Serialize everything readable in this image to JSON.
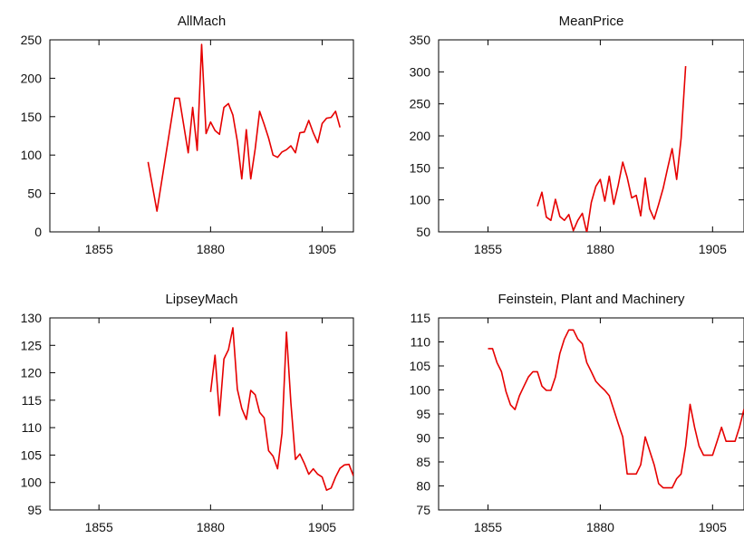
{
  "chart_data": [
    {
      "type": "line",
      "title": "AllMach",
      "xlim": [
        1844,
        1912
      ],
      "ylim": [
        0,
        250
      ],
      "x_ticks": [
        "1855",
        "1880",
        "1905"
      ],
      "y_ticks": [
        "0",
        "50",
        "100",
        "150",
        "200",
        "250"
      ],
      "series": [
        {
          "color": "#e60000",
          "x": [
            1866,
            1868,
            1872,
            1873,
            1875,
            1876,
            1877,
            1878,
            1879,
            1880,
            1881,
            1882,
            1883,
            1884,
            1885,
            1886,
            1887,
            1888,
            1889,
            1890,
            1891,
            1892,
            1893,
            1894,
            1895,
            1896,
            1897,
            1898,
            1899,
            1900,
            1901,
            1902,
            1903,
            1904,
            1905,
            1906,
            1907,
            1908,
            1909
          ],
          "y": [
            91,
            27,
            174,
            174,
            103,
            162,
            106,
            244,
            128,
            143,
            132,
            127,
            162,
            167,
            152,
            118,
            69,
            133,
            69,
            108,
            157,
            140,
            122,
            100,
            97,
            104,
            107,
            112,
            103,
            129,
            130,
            145,
            129,
            116,
            141,
            148,
            149,
            157,
            136
          ]
        }
      ]
    },
    {
      "type": "line",
      "title": "MeanPrice",
      "xlim": [
        1844,
        1912
      ],
      "ylim": [
        50,
        350
      ],
      "x_ticks": [
        "1855",
        "1880",
        "1905"
      ],
      "y_ticks": [
        "50",
        "100",
        "150",
        "200",
        "250",
        "300",
        "350"
      ],
      "series": [
        {
          "color": "#e60000",
          "x": [
            1866,
            1867,
            1868,
            1869,
            1870,
            1871,
            1872,
            1873,
            1874,
            1875,
            1876,
            1877,
            1878,
            1879,
            1880,
            1881,
            1882,
            1883,
            1884,
            1885,
            1886,
            1887,
            1888,
            1889,
            1890,
            1891,
            1892,
            1893,
            1894,
            1895,
            1896,
            1897,
            1898,
            1899
          ],
          "y": [
            90,
            112,
            73,
            68,
            101,
            74,
            68,
            77,
            52,
            68,
            79,
            49,
            96,
            121,
            132,
            98,
            137,
            93,
            123,
            159,
            135,
            103,
            107,
            75,
            134,
            86,
            70,
            93,
            118,
            150,
            180,
            132,
            196,
            309
          ]
        }
      ]
    },
    {
      "type": "line",
      "title": "LipseyMach",
      "xlim": [
        1844,
        1912
      ],
      "ylim": [
        95,
        130
      ],
      "x_ticks": [
        "1855",
        "1880",
        "1905"
      ],
      "y_ticks": [
        "95",
        "100",
        "105",
        "110",
        "115",
        "120",
        "125",
        "130"
      ],
      "series": [
        {
          "color": "#e60000",
          "x": [
            1880,
            1881,
            1882,
            1883,
            1884,
            1885,
            1886,
            1887,
            1888,
            1889,
            1890,
            1891,
            1892,
            1893,
            1894,
            1895,
            1896,
            1897,
            1898,
            1899,
            1900,
            1901,
            1902,
            1903,
            1904,
            1905,
            1906,
            1907,
            1908,
            1909,
            1910,
            1911,
            1912
          ],
          "y": [
            116.5,
            123.2,
            112.2,
            122.5,
            124.2,
            128.2,
            117.0,
            113.5,
            111.5,
            116.8,
            116.0,
            112.8,
            111.8,
            105.8,
            104.8,
            102.5,
            109.0,
            127.4,
            114.5,
            104.2,
            105.2,
            103.5,
            101.5,
            102.5,
            101.5,
            101.0,
            98.6,
            99.0,
            101.0,
            102.6,
            103.2,
            103.3,
            101.2
          ]
        }
      ]
    },
    {
      "type": "line",
      "title": "Feinstein, Plant and Machinery",
      "xlim": [
        1844,
        1912
      ],
      "ylim": [
        75,
        115
      ],
      "x_ticks": [
        "1855",
        "1880",
        "1905"
      ],
      "y_ticks": [
        "75",
        "80",
        "85",
        "90",
        "95",
        "100",
        "105",
        "110",
        "115"
      ],
      "series": [
        {
          "color": "#e60000",
          "x": [
            1855,
            1856,
            1857,
            1858,
            1859,
            1860,
            1861,
            1862,
            1863,
            1864,
            1865,
            1866,
            1867,
            1868,
            1869,
            1870,
            1871,
            1872,
            1873,
            1874,
            1875,
            1876,
            1877,
            1878,
            1879,
            1880,
            1881,
            1882,
            1883,
            1884,
            1885,
            1886,
            1887,
            1888,
            1889,
            1890,
            1891,
            1892,
            1893,
            1894,
            1895,
            1896,
            1897,
            1898,
            1899,
            1900,
            1901,
            1902,
            1903,
            1904,
            1905,
            1906,
            1907,
            1908,
            1909,
            1910,
            1911,
            1912
          ],
          "y": [
            108.6,
            108.6,
            105.7,
            103.8,
            99.7,
            96.9,
            95.9,
            98.8,
            100.8,
            102.7,
            103.8,
            103.8,
            100.8,
            99.9,
            99.9,
            102.7,
            107.6,
            110.6,
            112.5,
            112.5,
            110.6,
            109.6,
            105.7,
            103.8,
            101.8,
            100.8,
            99.9,
            98.8,
            95.9,
            93.0,
            90.2,
            82.5,
            82.5,
            82.5,
            84.4,
            90.2,
            87.3,
            84.4,
            80.5,
            79.6,
            79.6,
            79.6,
            81.5,
            82.5,
            88.3,
            97.0,
            92.2,
            88.3,
            86.4,
            86.4,
            86.4,
            89.3,
            92.2,
            89.3,
            89.3,
            89.3,
            92.2,
            96.0
          ]
        }
      ]
    }
  ]
}
